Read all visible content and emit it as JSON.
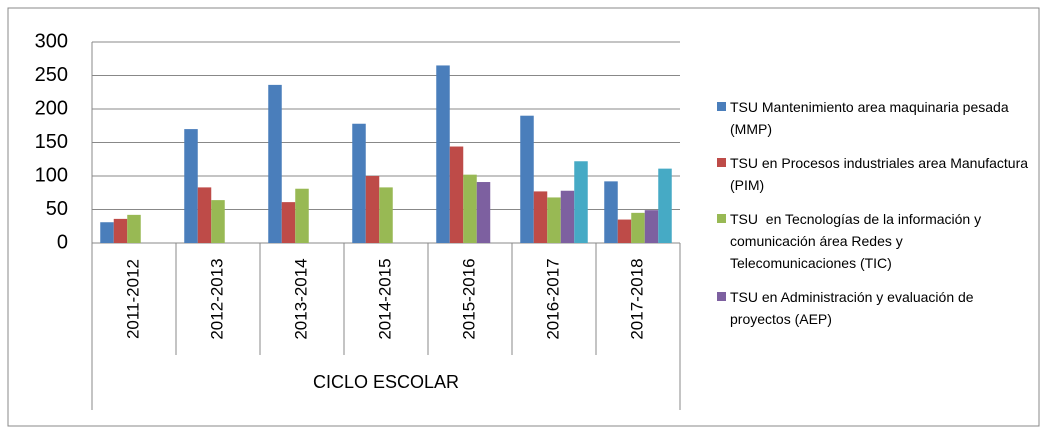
{
  "chart_data": {
    "type": "bar",
    "x_axis_label": "CICLO ESCOLAR",
    "categories": [
      "2011-2012",
      "2012-2013",
      "2013-2014",
      "2014-2015",
      "2015-2016",
      "2016-2017",
      "2017-2018"
    ],
    "series": [
      {
        "name": "TSU Mantenimiento area maquinaria pesada (MMP)",
        "color": "#4a7ebb",
        "values": [
          31,
          170,
          236,
          178,
          265,
          190,
          92
        ]
      },
      {
        "name": "TSU en Procesos industriales area Manufactura (PIM)",
        "color": "#be4b48",
        "values": [
          36,
          83,
          61,
          100,
          144,
          77,
          35
        ]
      },
      {
        "name": "TSU  en Tecnologías de la información y comunicación área Redes y Telecomunicaciones (TIC)",
        "color": "#98b954",
        "values": [
          42,
          64,
          81,
          83,
          102,
          68,
          45
        ]
      },
      {
        "name": "TSU en Administración y evaluación de proyectos (AEP)",
        "color": "#7d60a0",
        "values": [
          null,
          null,
          null,
          null,
          91,
          78,
          49
        ]
      },
      {
        "color": "#46aac5",
        "values": [
          null,
          null,
          null,
          null,
          null,
          122,
          111
        ]
      }
    ],
    "ylim": [
      0,
      300
    ],
    "yticks": [
      0,
      50,
      100,
      150,
      200,
      250,
      300
    ],
    "grid": true,
    "legend": "right"
  }
}
